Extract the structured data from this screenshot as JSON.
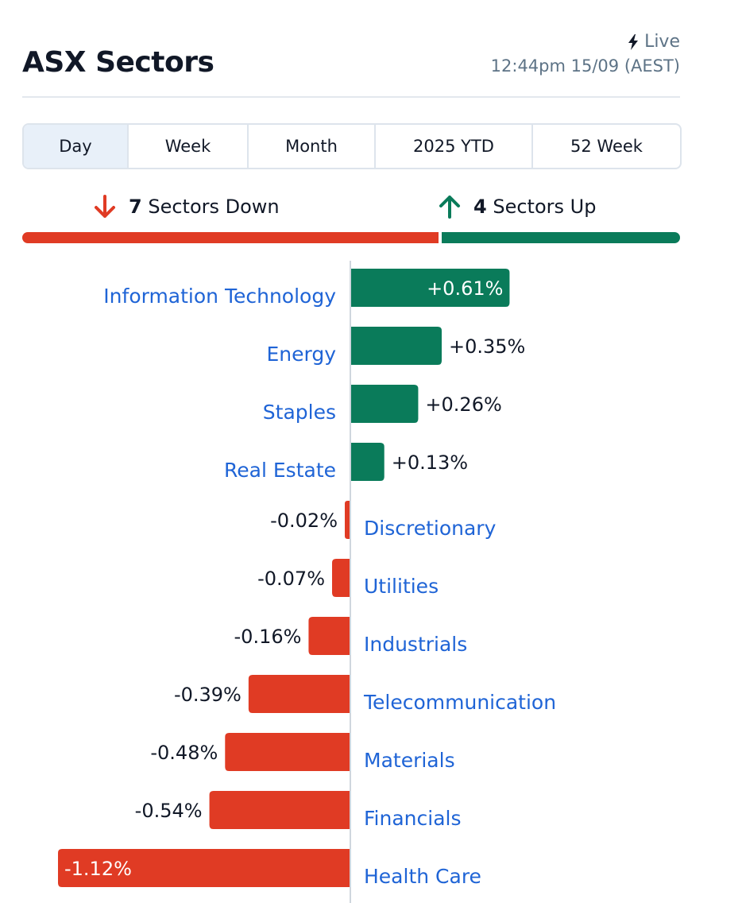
{
  "header": {
    "title": "ASX Sectors",
    "live_label": "Live",
    "timestamp": "12:44pm 15/09 (AEST)"
  },
  "tabs": [
    {
      "label": "Day",
      "active": true
    },
    {
      "label": "Week",
      "active": false
    },
    {
      "label": "Month",
      "active": false
    },
    {
      "label": "2025 YTD",
      "active": false
    },
    {
      "label": "52 Week",
      "active": false
    }
  ],
  "summary": {
    "down_count": "7",
    "down_label": "Sectors Down",
    "up_count": "4",
    "up_label": "Sectors Up"
  },
  "colors": {
    "up": "#0a7b5a",
    "down": "#e03b24",
    "link": "#1f64d6",
    "text": "#111827",
    "muted": "#5d7386"
  },
  "icons": {
    "live": "lightning-icon",
    "down": "arrow-down-icon",
    "up": "arrow-up-icon"
  },
  "chart_data": {
    "type": "bar",
    "orientation": "horizontal",
    "categories": [
      "Information Technology",
      "Energy",
      "Staples",
      "Real Estate",
      "Discretionary",
      "Utilities",
      "Industrials",
      "Telecommunication",
      "Materials",
      "Financials",
      "Health Care"
    ],
    "values": [
      0.61,
      0.35,
      0.26,
      0.13,
      -0.02,
      -0.07,
      -0.16,
      -0.39,
      -0.48,
      -0.54,
      -1.12
    ],
    "labels": [
      "+0.61%",
      "+0.35%",
      "+0.26%",
      "+0.13%",
      "-0.02%",
      "-0.07%",
      "-0.16%",
      "-0.39%",
      "-0.48%",
      "-0.54%",
      "-1.12%"
    ],
    "xlim": [
      -1.12,
      1.12
    ],
    "grid": false
  }
}
